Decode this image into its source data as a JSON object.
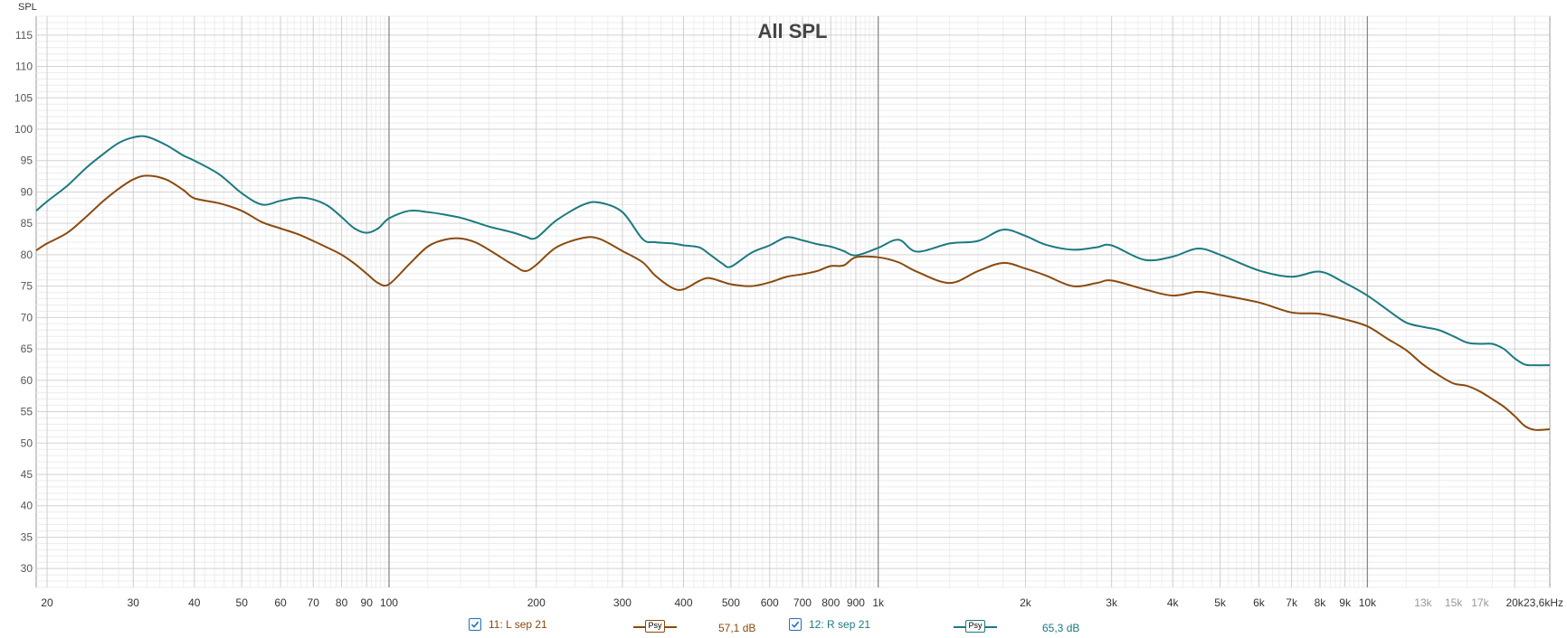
{
  "chart_data": {
    "type": "line",
    "title": "All SPL",
    "ylabel": "SPL",
    "xlabel": "",
    "xscale": "log",
    "xlim": [
      19,
      23600
    ],
    "ylim": [
      27,
      118
    ],
    "grid": true,
    "legend_position": "bottom",
    "y_ticks": [
      30,
      35,
      40,
      45,
      50,
      55,
      60,
      65,
      70,
      75,
      80,
      85,
      90,
      95,
      100,
      105,
      110,
      115
    ],
    "x_ticks": [
      {
        "value": 20,
        "label": "20"
      },
      {
        "value": 30,
        "label": "30"
      },
      {
        "value": 40,
        "label": "40"
      },
      {
        "value": 50,
        "label": "50"
      },
      {
        "value": 60,
        "label": "60"
      },
      {
        "value": 70,
        "label": "70"
      },
      {
        "value": 80,
        "label": "80"
      },
      {
        "value": 90,
        "label": "90"
      },
      {
        "value": 100,
        "label": "100"
      },
      {
        "value": 200,
        "label": "200"
      },
      {
        "value": 300,
        "label": "300"
      },
      {
        "value": 400,
        "label": "400"
      },
      {
        "value": 500,
        "label": "500"
      },
      {
        "value": 600,
        "label": "600"
      },
      {
        "value": 700,
        "label": "700"
      },
      {
        "value": 800,
        "label": "800"
      },
      {
        "value": 900,
        "label": "900"
      },
      {
        "value": 1000,
        "label": "1k"
      },
      {
        "value": 2000,
        "label": "2k"
      },
      {
        "value": 3000,
        "label": "3k"
      },
      {
        "value": 4000,
        "label": "4k"
      },
      {
        "value": 5000,
        "label": "5k"
      },
      {
        "value": 6000,
        "label": "6k"
      },
      {
        "value": 7000,
        "label": "7k"
      },
      {
        "value": 8000,
        "label": "8k"
      },
      {
        "value": 9000,
        "label": "9k"
      },
      {
        "value": 10000,
        "label": "10k"
      },
      {
        "value": 13000,
        "label": "13k",
        "minor": true
      },
      {
        "value": 15000,
        "label": "15k",
        "minor": true
      },
      {
        "value": 17000,
        "label": "17k",
        "minor": true
      },
      {
        "value": 20000,
        "label": "20k"
      },
      {
        "value": 23600,
        "label": "23,6kHz"
      }
    ],
    "series": [
      {
        "name": "11: L sep 21",
        "color": "#8b4a0d",
        "legend_value": "57,1 dB",
        "smoothing": "Psy",
        "x": [
          19,
          20,
          22,
          24,
          26,
          28,
          30,
          32,
          35,
          38,
          40,
          45,
          50,
          55,
          60,
          65,
          70,
          75,
          80,
          85,
          90,
          95,
          100,
          110,
          120,
          130,
          140,
          150,
          160,
          180,
          190,
          200,
          220,
          250,
          270,
          300,
          330,
          350,
          380,
          400,
          430,
          450,
          480,
          500,
          550,
          600,
          650,
          700,
          750,
          800,
          850,
          900,
          1000,
          1100,
          1200,
          1400,
          1600,
          1800,
          2000,
          2200,
          2500,
          2800,
          3000,
          3500,
          4000,
          4500,
          5000,
          6000,
          7000,
          8000,
          9000,
          10000,
          11000,
          12000,
          13000,
          14000,
          15000,
          16000,
          17000,
          18000,
          19000,
          20000,
          21000,
          22000,
          23600
        ],
        "y": [
          80.7,
          81.8,
          83.5,
          86,
          88.5,
          90.5,
          92,
          92.6,
          92,
          90.3,
          89,
          88.2,
          87,
          85.2,
          84.2,
          83.3,
          82.2,
          81.1,
          80,
          78.6,
          77,
          75.5,
          75.3,
          78.5,
          81.3,
          82.4,
          82.6,
          82,
          80.8,
          78.3,
          77.4,
          78.4,
          81.2,
          82.7,
          82.5,
          80.6,
          78.8,
          76.7,
          74.7,
          74.5,
          75.8,
          76.3,
          75.7,
          75.3,
          75,
          75.6,
          76.5,
          76.9,
          77.4,
          78.2,
          78.3,
          79.6,
          79.6,
          78.8,
          77.3,
          75.5,
          77.4,
          78.7,
          77.8,
          76.7,
          75,
          75.5,
          75.9,
          74.5,
          73.5,
          74.1,
          73.6,
          72.4,
          70.8,
          70.6,
          69.7,
          68.6,
          66.6,
          64.8,
          62.5,
          60.8,
          59.5,
          59.1,
          58.2,
          57,
          55.8,
          54.3,
          52.7,
          52.1,
          52.2
        ]
      },
      {
        "name": "12: R sep 21",
        "color": "#1b7a80",
        "legend_value": "65,3 dB",
        "smoothing": "Psy",
        "x": [
          19,
          20,
          22,
          24,
          26,
          28,
          30,
          32,
          35,
          38,
          40,
          45,
          50,
          55,
          60,
          65,
          70,
          75,
          80,
          85,
          90,
          95,
          100,
          110,
          120,
          130,
          140,
          150,
          160,
          180,
          190,
          200,
          220,
          250,
          270,
          300,
          330,
          350,
          380,
          400,
          430,
          450,
          480,
          500,
          550,
          600,
          650,
          700,
          750,
          800,
          850,
          900,
          1000,
          1100,
          1200,
          1400,
          1600,
          1800,
          2000,
          2200,
          2500,
          2800,
          3000,
          3500,
          4000,
          4500,
          5000,
          6000,
          7000,
          8000,
          9000,
          10000,
          11000,
          12000,
          13000,
          14000,
          15000,
          16000,
          17000,
          18000,
          19000,
          20000,
          21000,
          22000,
          23600
        ],
        "y": [
          87,
          88.5,
          91,
          93.8,
          96,
          97.8,
          98.7,
          98.8,
          97.5,
          95.8,
          95,
          92.8,
          89.8,
          88,
          88.6,
          89.1,
          88.8,
          87.8,
          86,
          84.2,
          83.5,
          84.2,
          85.8,
          87,
          86.8,
          86.4,
          85.9,
          85.2,
          84.5,
          83.5,
          82.9,
          82.7,
          85.5,
          88,
          88.3,
          86.8,
          82.5,
          82,
          81.8,
          81.5,
          81.2,
          80.2,
          78.6,
          78.1,
          80.3,
          81.5,
          82.8,
          82.3,
          81.7,
          81.3,
          80.6,
          79.9,
          81.1,
          82.4,
          80.5,
          81.8,
          82.2,
          84,
          83,
          81.6,
          80.8,
          81.2,
          81.5,
          79.2,
          79.7,
          81,
          80,
          77.5,
          76.5,
          77.3,
          75.5,
          73.5,
          71.2,
          69.2,
          68.5,
          68,
          67,
          66,
          65.8,
          65.8,
          65,
          63.5,
          62.5,
          62.4,
          62.4
        ]
      }
    ]
  },
  "legend": {
    "items": [
      {
        "label": "11: L sep 21",
        "psy": "Psy",
        "value": "57,1 dB",
        "color": "#8b4a0d"
      },
      {
        "label": "12: R sep 21",
        "psy": "Psy",
        "value": "65,3 dB",
        "color": "#1b7a80"
      }
    ]
  }
}
